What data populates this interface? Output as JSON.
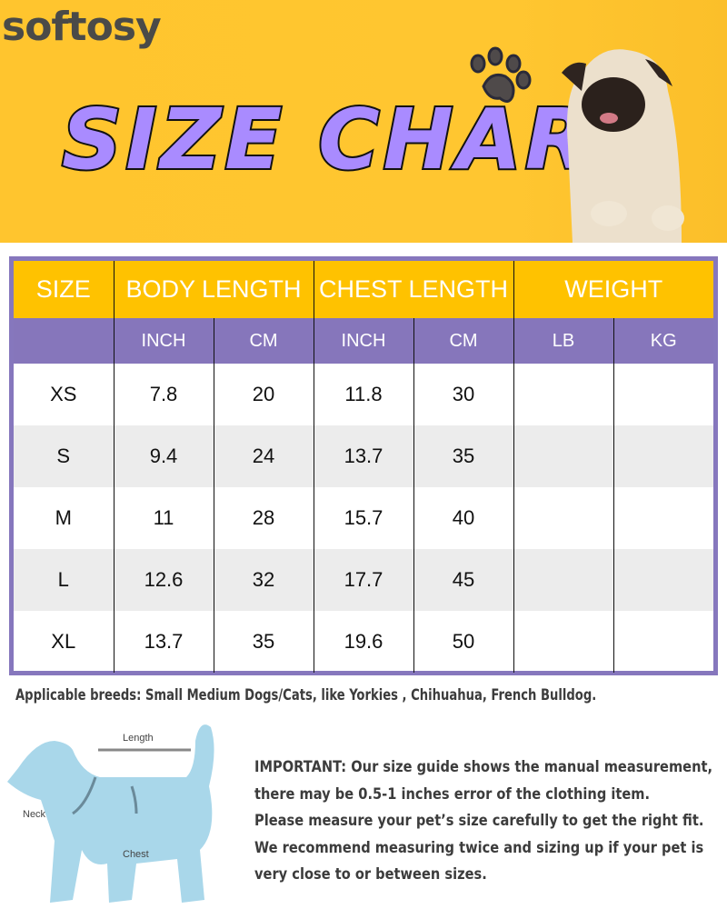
{
  "brand": {
    "logo": "softosy"
  },
  "banner": {
    "title": "SIZE CHART",
    "bg_color": "#ffc52e",
    "title_color": "#a98bff"
  },
  "table": {
    "header_color": "#ffc200",
    "subheader_color": "#8676bb",
    "border_color": "#8677bd",
    "headers": [
      "SIZE",
      "BODY LENGTH",
      "CHEST LENGTH",
      "WEIGHT"
    ],
    "subheaders": [
      "INCH",
      "CM",
      "INCH",
      "CM",
      "LB",
      "KG"
    ],
    "rows": [
      {
        "size": "XS",
        "body_inch": "7.8",
        "body_cm": "20",
        "chest_inch": "11.8",
        "chest_cm": "30",
        "lb": "",
        "kg": ""
      },
      {
        "size": "S",
        "body_inch": "9.4",
        "body_cm": "24",
        "chest_inch": "13.7",
        "chest_cm": "35",
        "lb": "",
        "kg": ""
      },
      {
        "size": "M",
        "body_inch": "11",
        "body_cm": "28",
        "chest_inch": "15.7",
        "chest_cm": "40",
        "lb": "",
        "kg": ""
      },
      {
        "size": "L",
        "body_inch": "12.6",
        "body_cm": "32",
        "chest_inch": "17.7",
        "chest_cm": "45",
        "lb": "",
        "kg": ""
      },
      {
        "size": "XL",
        "body_inch": "13.7",
        "body_cm": "35",
        "chest_inch": "19.6",
        "chest_cm": "50",
        "lb": "",
        "kg": ""
      }
    ]
  },
  "breeds": "Applicable breeds: Small Medium Dogs/Cats, like Yorkies , Chihuahua, French Bulldog.",
  "diagram": {
    "length": "Length",
    "neck": "Neck",
    "chest": "Chest"
  },
  "note": [
    "IMPORTANT: Our size guide shows the manual measurement,",
    "there may be 0.5-1 inches error of the clothing item.",
    "Please measure your pet’s size carefully to get the right fit.",
    "We recommend measuring twice and sizing up if your pet is",
    "very close to or between sizes."
  ]
}
